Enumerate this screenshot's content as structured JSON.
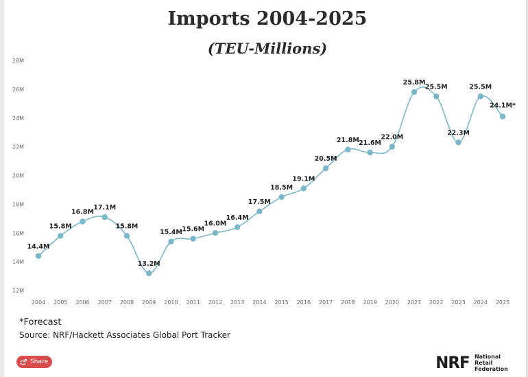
{
  "title": "Imports 2004-2025",
  "subtitle": "(TEU-Millions)",
  "footnote_forecast": "*Forecast",
  "footnote_source": "Source: NRF/Hackett Associates Global Port Tracker",
  "share_label": "Share",
  "logo": {
    "mark": "NRF",
    "line1": "National",
    "line2": "Retail",
    "line3": "Federation"
  },
  "colors": {
    "line": "#7ab8c9",
    "point": "#7ab8c9",
    "text": "#222222",
    "tick": "#666666"
  },
  "chart_data": {
    "type": "line",
    "title": "Imports 2004-2025",
    "subtitle": "(TEU-Millions)",
    "ylim": [
      12,
      28
    ],
    "yticks": [
      12,
      14,
      16,
      18,
      20,
      22,
      24,
      26,
      28
    ],
    "ytick_labels": [
      "12M",
      "14M",
      "16M",
      "18M",
      "20M",
      "22M",
      "24M",
      "26M",
      "28M"
    ],
    "categories": [
      "2004",
      "2005",
      "2006",
      "2007",
      "2008",
      "2009",
      "2010",
      "2011",
      "2012",
      "2013",
      "2014",
      "2015",
      "2016",
      "2017",
      "2018",
      "2019",
      "2020",
      "2021",
      "2022",
      "2023",
      "2024",
      "2025"
    ],
    "series": [
      {
        "values": [
          14.4,
          15.8,
          16.8,
          17.1,
          15.8,
          13.2,
          15.4,
          15.6,
          16.0,
          16.4,
          17.5,
          18.5,
          19.1,
          20.5,
          21.8,
          21.6,
          22.0,
          25.8,
          25.5,
          22.3,
          25.5,
          24.1
        ],
        "labels": [
          "14.4M",
          "15.8M",
          "16.8M",
          "17.1M",
          "15.8M",
          "13.2M",
          "15.4M",
          "15.6M",
          "16.0M",
          "16.4M",
          "17.5M",
          "18.5M",
          "19.1M",
          "20.5M",
          "21.8M",
          "21.6M",
          "22.0M",
          "25.8M",
          "25.5M",
          "22.3M",
          "25.5M",
          "24.1M*"
        ]
      }
    ],
    "grid": false,
    "legend": "none"
  }
}
